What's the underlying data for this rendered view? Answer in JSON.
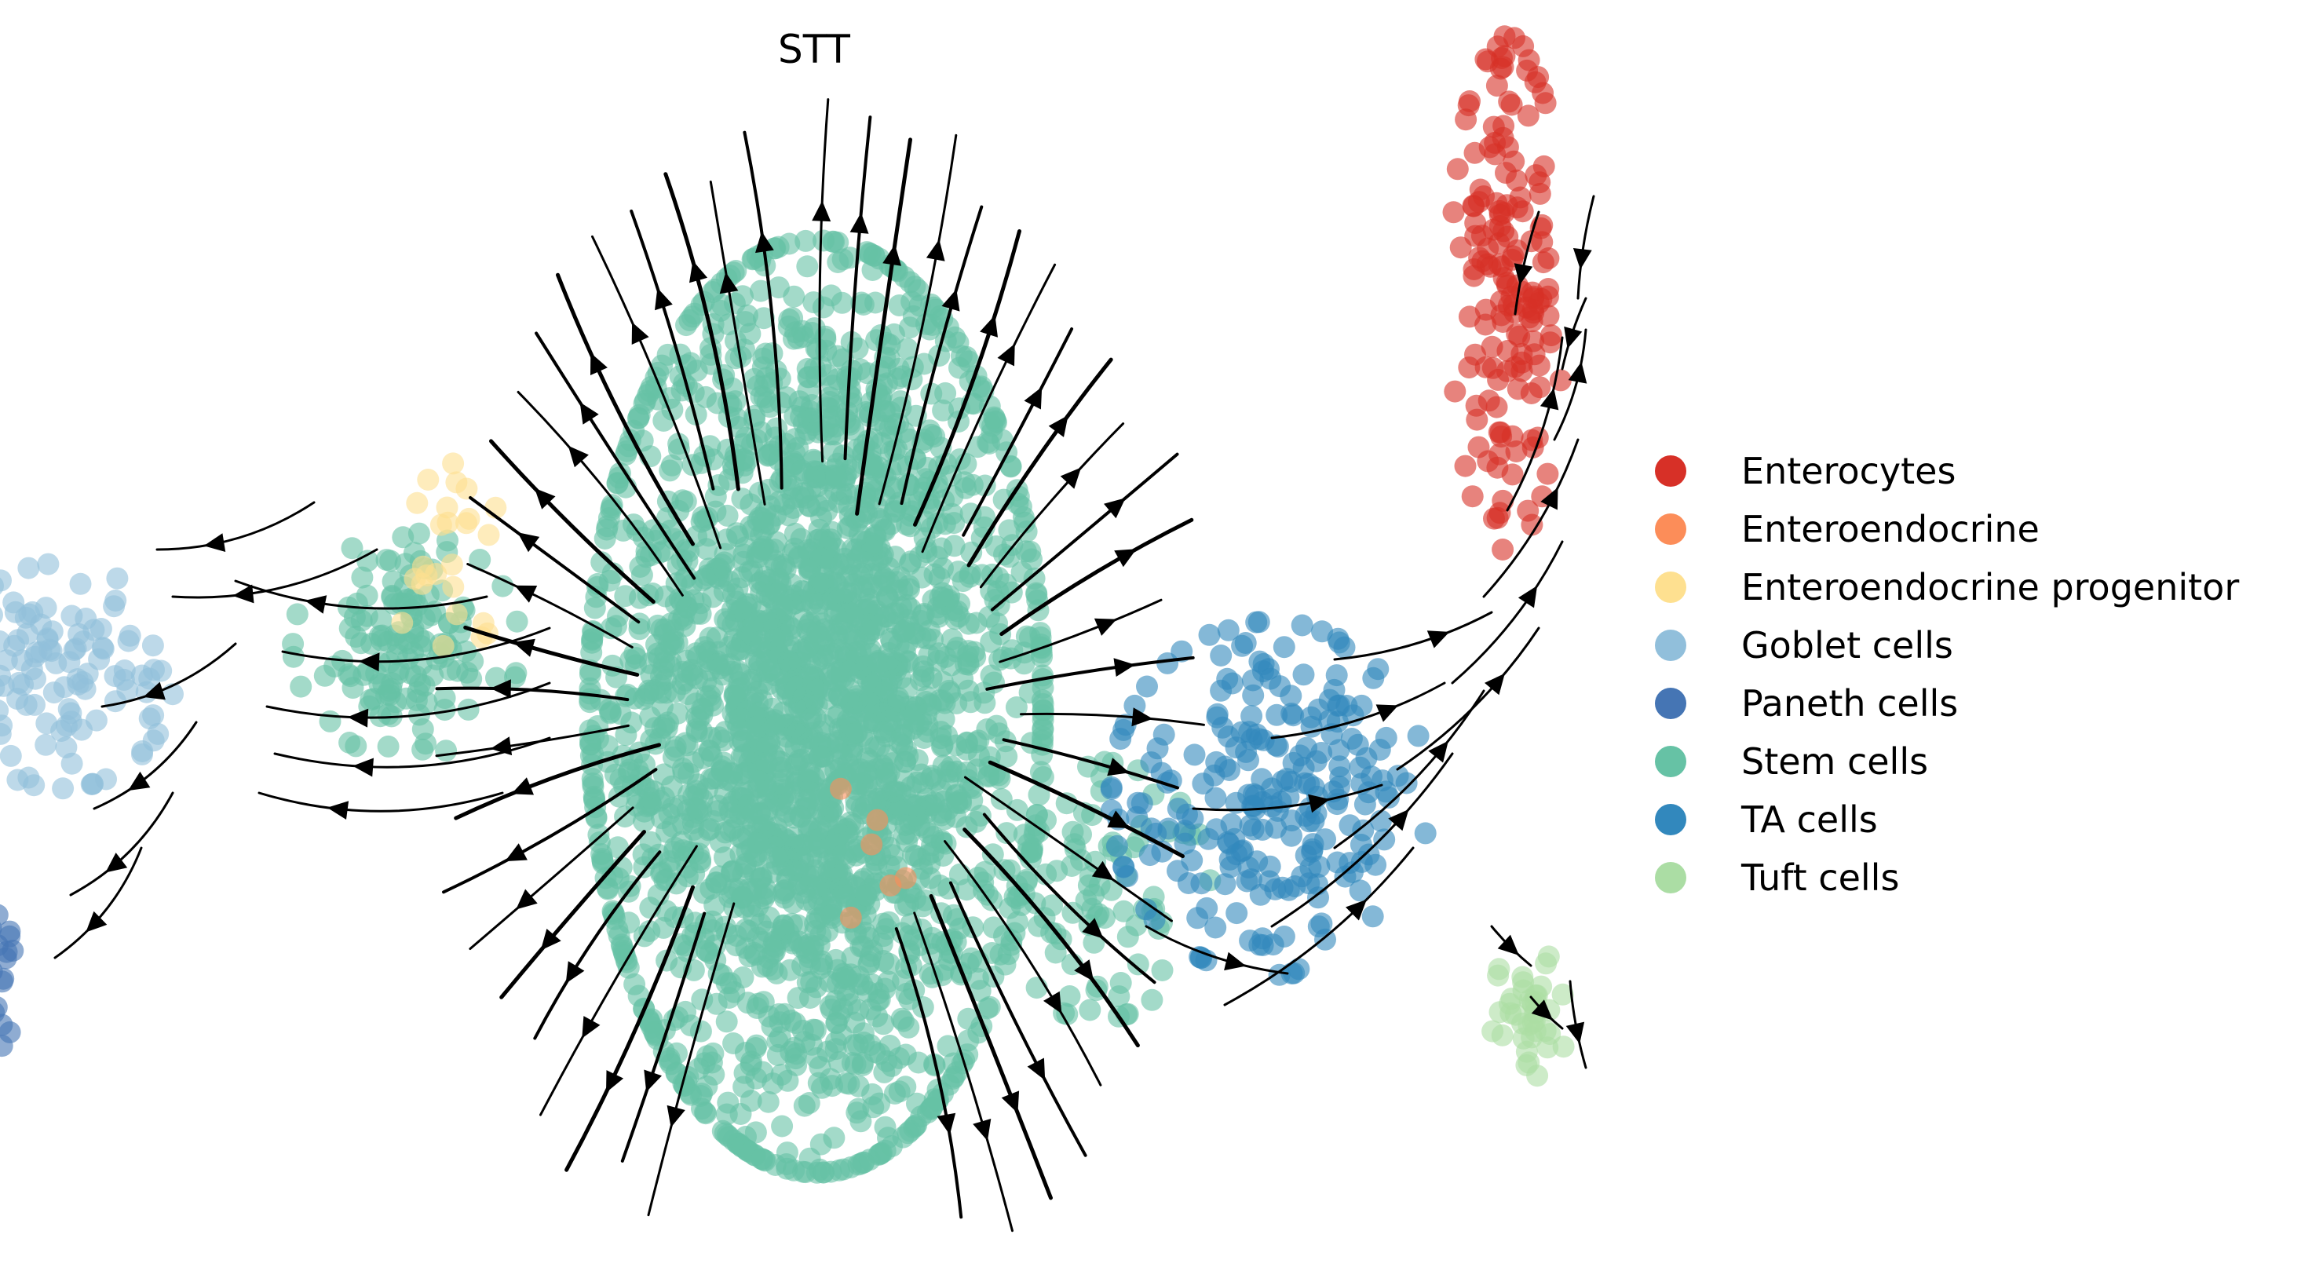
{
  "chart_data": {
    "type": "scatter",
    "subtype": "embedding-with-velocity-streamlines",
    "title": "STT",
    "xlabel": "",
    "ylabel": "",
    "axes_visible": false,
    "grid": false,
    "legend_position": "right",
    "categories": [
      {
        "name": "Enterocytes",
        "color": "#d73027"
      },
      {
        "name": "Enteroendocrine",
        "color": "#fc8d59"
      },
      {
        "name": "Enteroendocrine progenitor",
        "color": "#fee090"
      },
      {
        "name": "Goblet cells",
        "color": "#91bfdb"
      },
      {
        "name": "Paneth cells",
        "color": "#4575b4"
      },
      {
        "name": "Stem cells",
        "color": "#66c2a5"
      },
      {
        "name": "TA cells",
        "color": "#3288bd"
      },
      {
        "name": "Tuft cells",
        "color": "#abdda4"
      }
    ],
    "clusters": [
      {
        "category": "Stem cells",
        "center": [
          0.0,
          0.0
        ],
        "spread": [
          1.0,
          1.45
        ],
        "count": 2600
      },
      {
        "category": "Stem cells",
        "center": [
          -1.9,
          0.2
        ],
        "spread": [
          0.5,
          0.35
        ],
        "count": 140
      },
      {
        "category": "Stem cells",
        "center": [
          1.3,
          -0.6
        ],
        "spread": [
          0.5,
          0.4
        ],
        "count": 90
      },
      {
        "category": "Enterocytes",
        "center": [
          3.2,
          1.35
        ],
        "spread": [
          0.25,
          0.8
        ],
        "count": 160
      },
      {
        "category": "TA cells",
        "center": [
          2.1,
          -0.3
        ],
        "spread": [
          0.7,
          0.55
        ],
        "count": 240
      },
      {
        "category": "Goblet cells",
        "center": [
          -3.5,
          0.1
        ],
        "spread": [
          0.5,
          0.35
        ],
        "count": 110
      },
      {
        "category": "Paneth cells",
        "center": [
          -3.9,
          -0.9
        ],
        "spread": [
          0.2,
          0.25
        ],
        "count": 55
      },
      {
        "category": "Enteroendocrine progenitor",
        "center": [
          -1.7,
          0.5
        ],
        "spread": [
          0.3,
          0.3
        ],
        "count": 25
      },
      {
        "category": "Enteroendocrine",
        "center": [
          0.05,
          -0.35
        ],
        "spread": [
          0.4,
          0.4
        ],
        "count": 6
      },
      {
        "category": "Tuft cells",
        "center": [
          3.3,
          -1.0
        ],
        "spread": [
          0.18,
          0.2
        ],
        "count": 40
      }
    ],
    "velocity_pattern": "streamlines radiate outward from the center of the stem cell cluster; flow runs leftward through goblet cells toward Paneth cells, and upward through TA cells toward enterocytes"
  }
}
